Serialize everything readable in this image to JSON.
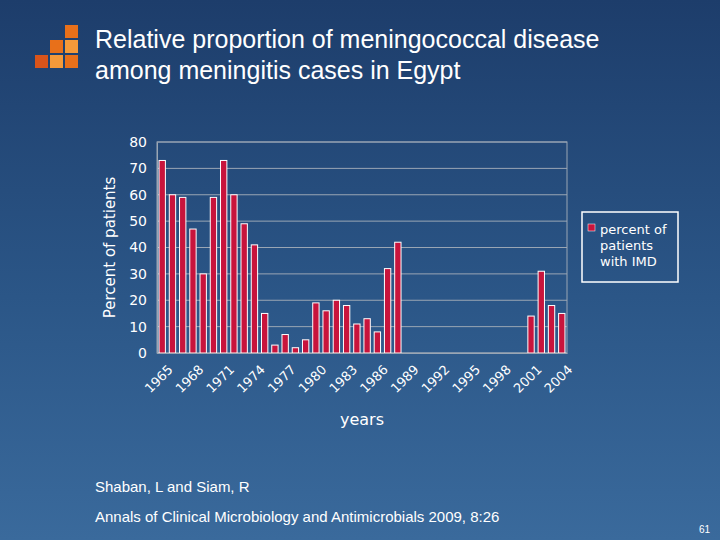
{
  "chart_data": {
    "type": "bar",
    "title": "Relative proportion of meningococcal disease among meningitis cases in Egypt",
    "xlabel": "years",
    "ylabel": "Percent of patients",
    "categories": [
      "1965",
      null,
      null,
      "1968",
      null,
      null,
      "1971",
      null,
      null,
      "1974",
      null,
      null,
      "1977",
      null,
      null,
      "1980",
      null,
      null,
      "1983",
      null,
      null,
      "1986",
      null,
      null,
      "1989",
      null,
      null,
      "1992",
      null,
      null,
      "1995",
      null,
      null,
      "1998",
      null,
      null,
      "2001",
      null,
      null,
      "2004"
    ],
    "series": [
      {
        "name": "percent of patients with IMD",
        "color": "#c8143c",
        "values": [
          73,
          60,
          59,
          47,
          30,
          59,
          73,
          60,
          49,
          41,
          15,
          3,
          7,
          2,
          5,
          19,
          16,
          20,
          18,
          11,
          13,
          8,
          32,
          42,
          0,
          0,
          0,
          0,
          0,
          0,
          0,
          0,
          0,
          0,
          0,
          0,
          14,
          31,
          18,
          15
        ]
      }
    ],
    "ylim": [
      0,
      80
    ],
    "yticks": [
      0,
      10,
      20,
      30,
      40,
      50,
      60,
      70,
      80
    ],
    "grid": true,
    "legend": "right",
    "annotations": [
      "Shaban, L and Siam, R",
      "Annals of Clinical Microbiology and Antimicrobials 2009, 8:26",
      "61"
    ]
  }
}
